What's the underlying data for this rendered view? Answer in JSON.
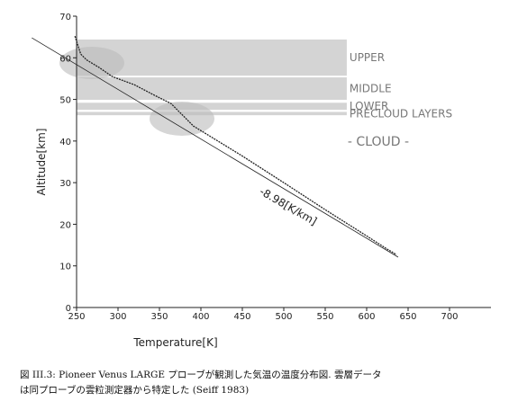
{
  "chart_data": {
    "type": "line",
    "x_label": "Temperature[K]",
    "y_label": "Altitude[km]",
    "annotation": "-8.98[K/km]",
    "cloud_label": "- CLOUD -",
    "caption": [
      "図 III.3: Pioneer Venus LARGE プローブが観測した気温の温度分布図. 雲層データ",
      "は同プローブの雲粒測定器から特定した (Seiff 1983)"
    ],
    "xlim": [
      250,
      750
    ],
    "ylim": [
      0,
      70
    ],
    "xticks": [
      250,
      300,
      350,
      400,
      450,
      500,
      550,
      600,
      650,
      700
    ],
    "yticks": [
      0,
      10,
      20,
      30,
      40,
      50,
      60,
      70
    ],
    "band_xlim": [
      250,
      576
    ],
    "bands": [
      {
        "label": "UPPER",
        "range": [
          55.7,
          64.4
        ]
      },
      {
        "label": "MIDDLE",
        "range": [
          49.9,
          55.3
        ]
      },
      {
        "label": "LOWER",
        "range": [
          47.5,
          49.2
        ]
      },
      {
        "label": "PRECLOUD LAYERS",
        "range": [
          46.2,
          47.0
        ]
      }
    ],
    "series": [
      {
        "color": "#222",
        "x": [
          248,
          255,
          262,
          277,
          293,
          320,
          342,
          364,
          380,
          391,
          450,
          500,
          550,
          600,
          625,
          636
        ],
        "values": [
          65.2,
          60.9,
          59.5,
          57.7,
          55.5,
          53.5,
          51.2,
          49.0,
          45.8,
          43.6,
          36.4,
          30.0,
          23.5,
          17.2,
          14.0,
          12.7
        ]
      },
      {
        "color": "#222",
        "x": [
          196,
          638
        ],
        "values": [
          64.8,
          12.1
        ]
      }
    ]
  }
}
